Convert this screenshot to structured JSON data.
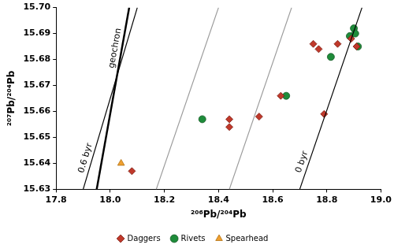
{
  "chart_data": {
    "type": "scatter",
    "x_label": "²⁰⁶Pb/²⁰⁴Pb",
    "y_label": "²⁰⁷Pb/²⁰⁴Pb",
    "xlim": [
      17.8,
      19.0
    ],
    "xticks": [
      17.8,
      {
        "value": 18.0,
        "label": "18.0"
      },
      18.2,
      18.4,
      18.6,
      18.8,
      {
        "value": 19.0,
        "label": "19.0"
      }
    ],
    "ylim": [
      15.63,
      15.7
    ],
    "yticks": [
      15.63,
      15.64,
      15.65,
      15.66,
      15.67,
      15.68,
      15.69,
      {
        "value": 15.7,
        "label": "15.70"
      }
    ],
    "grid": false,
    "legend": "bottom",
    "series": [
      {
        "name": "Daggers",
        "color": "#c0392b",
        "marker": "diamond",
        "x": [
          18.08,
          18.44,
          18.44,
          18.55,
          18.63,
          18.75,
          18.77,
          18.79,
          18.84,
          18.89,
          18.91
        ],
        "y": [
          15.637,
          15.657,
          15.654,
          15.658,
          15.666,
          15.686,
          15.684,
          15.659,
          15.686,
          15.688,
          15.685
        ]
      },
      {
        "name": "Rivets",
        "color": "#1e8c3a",
        "marker": "circle",
        "x": [
          18.34,
          18.65,
          18.815,
          18.885,
          18.9,
          18.905,
          18.915
        ],
        "y": [
          15.657,
          15.666,
          15.681,
          15.689,
          15.692,
          15.69,
          15.685
        ]
      },
      {
        "name": "Spearhead",
        "color": "#f0a030",
        "marker": "triangle",
        "x": [
          18.04
        ],
        "y": [
          15.64
        ]
      }
    ],
    "lines": [
      {
        "label": "geochron",
        "color": "#000000",
        "line_style": "thick",
        "x": [
          17.95,
          18.07
        ],
        "y": [
          15.63,
          15.7
        ]
      },
      {
        "label": "0.6 byr",
        "color": "#000000",
        "line_style": "solid",
        "x": [
          17.9,
          18.1
        ],
        "y": [
          15.63,
          15.7
        ]
      },
      {
        "color": "#9a9a9a",
        "line_style": "solid",
        "x": [
          18.17,
          18.4
        ],
        "y": [
          15.63,
          15.7
        ]
      },
      {
        "color": "#9a9a9a",
        "line_style": "solid",
        "x": [
          18.44,
          18.67
        ],
        "y": [
          15.63,
          15.7
        ]
      },
      {
        "label": "0 byr",
        "color": "#000000",
        "line_style": "solid",
        "x": [
          18.7,
          18.93
        ],
        "y": [
          15.63,
          15.7
        ]
      }
    ]
  }
}
